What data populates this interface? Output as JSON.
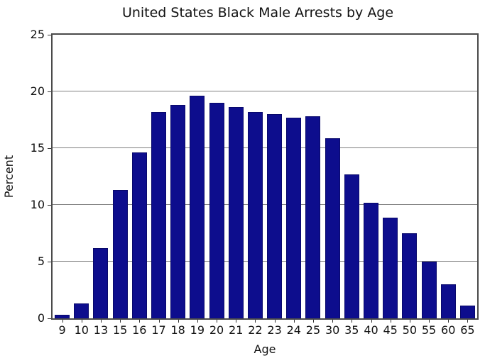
{
  "chart_data": {
    "type": "bar",
    "title": "United States Black Male Arrests by Age",
    "xlabel": "Age",
    "ylabel": "Percent",
    "categories": [
      "9",
      "10",
      "13",
      "15",
      "16",
      "17",
      "18",
      "19",
      "20",
      "21",
      "22",
      "23",
      "24",
      "25",
      "30",
      "35",
      "40",
      "45",
      "50",
      "55",
      "60",
      "65"
    ],
    "values": [
      0.3,
      1.3,
      6.2,
      11.3,
      14.6,
      18.2,
      18.8,
      19.6,
      19.0,
      18.6,
      18.2,
      18.0,
      17.7,
      17.8,
      15.9,
      12.7,
      10.2,
      8.9,
      7.5,
      5.0,
      3.0,
      1.1
    ],
    "ylim": [
      0,
      25
    ],
    "yticks": [
      0,
      5,
      10,
      15,
      20,
      25
    ],
    "grid": true,
    "legend": "none",
    "colors": {
      "bar_fill": "#0d0d8d",
      "bar_edge": "#08086b",
      "gridline": "#808080",
      "spine": "#4a4a4a",
      "text": "#111111",
      "background": "#ffffff"
    }
  }
}
